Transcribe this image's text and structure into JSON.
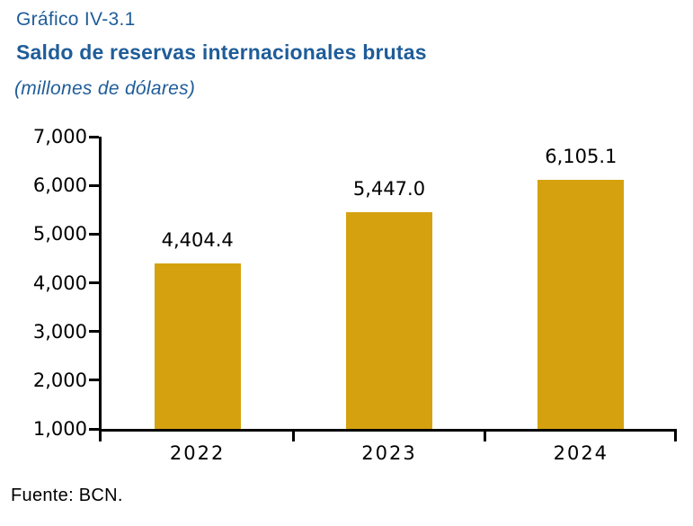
{
  "header": {
    "figure_label": "Gráfico IV-3.1",
    "title": "Saldo de reservas internacionales brutas",
    "subtitle": "(millones de dólares)"
  },
  "footer": {
    "source": "Fuente: BCN."
  },
  "colors": {
    "title_blue": "#1f5c99",
    "bar_gold": "#d5a10e",
    "axis_black": "#000000",
    "background": "#ffffff"
  },
  "chart_data": {
    "type": "bar",
    "title": "Saldo de reservas internacionales brutas",
    "unit_label": "(millones de dólares)",
    "categories": [
      "2022",
      "2023",
      "2024"
    ],
    "values": [
      4404.4,
      5447.0,
      6105.1
    ],
    "value_labels": [
      "4,404.4",
      "5,447.0",
      "6,105.1"
    ],
    "ylim": [
      1000,
      7000
    ],
    "ytick_step": 1000,
    "ytick_labels": [
      "1,000",
      "2,000",
      "3,000",
      "4,000",
      "5,000",
      "6,000",
      "7,000"
    ],
    "grid": false,
    "legend": "none",
    "bar_color": "#d5a10e",
    "source": "Fuente: BCN."
  }
}
